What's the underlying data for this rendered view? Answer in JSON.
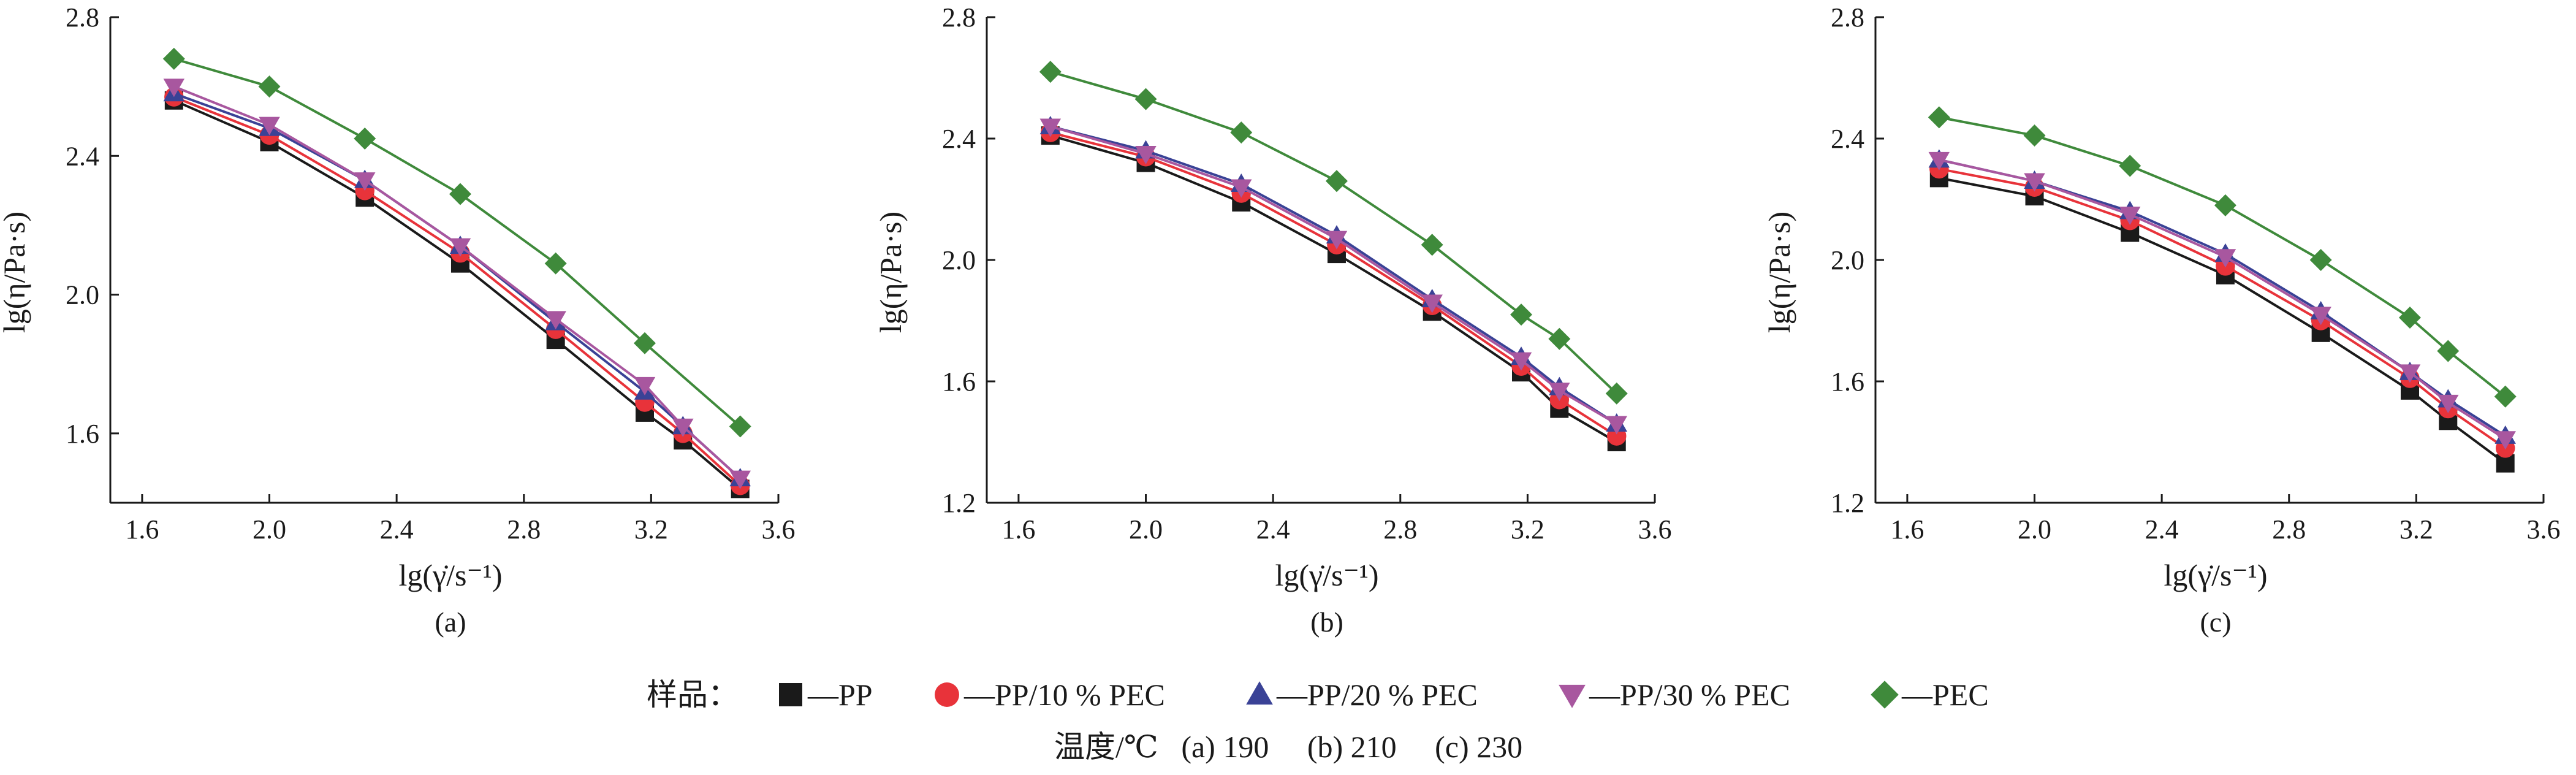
{
  "chart_data": [
    {
      "type": "line",
      "panel_label": "(a)",
      "xlabel": "lg(γ̇/s⁻¹)",
      "ylabel": "lg(η/Pa·s)",
      "xlim": [
        1.5,
        3.6
      ],
      "ylim": [
        1.4,
        2.8
      ],
      "xticks": [
        "1.6",
        "2.0",
        "2.4",
        "2.8",
        "3.2",
        "3.6"
      ],
      "yticks": [
        "1.6",
        "2.0",
        "2.4",
        "2.8"
      ],
      "grid": false,
      "x": [
        1.7,
        2.0,
        2.3,
        2.6,
        2.9,
        3.18,
        3.3,
        3.48
      ],
      "series": [
        {
          "name": "PP",
          "values": [
            2.56,
            2.44,
            2.28,
            2.09,
            1.87,
            1.66,
            1.58,
            1.44
          ]
        },
        {
          "name": "PP/10 % PEC",
          "values": [
            2.57,
            2.46,
            2.3,
            2.12,
            1.9,
            1.69,
            1.6,
            1.45
          ]
        },
        {
          "name": "PP/20 % PEC",
          "values": [
            2.58,
            2.48,
            2.33,
            2.14,
            1.92,
            1.72,
            1.62,
            1.47
          ]
        },
        {
          "name": "PP/30 % PEC",
          "values": [
            2.6,
            2.49,
            2.33,
            2.14,
            1.93,
            1.74,
            1.62,
            1.47
          ]
        },
        {
          "name": "PEC",
          "values": [
            2.68,
            2.6,
            2.45,
            2.29,
            2.09,
            1.86,
            null,
            1.62
          ]
        }
      ]
    },
    {
      "type": "line",
      "panel_label": "(b)",
      "xlabel": "lg(γ̇/s⁻¹)",
      "ylabel": "lg(η/Pa·s)",
      "xlim": [
        1.5,
        3.6
      ],
      "ylim": [
        1.2,
        2.8
      ],
      "xticks": [
        "1.6",
        "2.0",
        "2.4",
        "2.8",
        "3.2",
        "3.6"
      ],
      "yticks": [
        "1.2",
        "1.6",
        "2.0",
        "2.4",
        "2.8"
      ],
      "grid": false,
      "x": [
        1.7,
        2.0,
        2.3,
        2.6,
        2.9,
        3.18,
        3.3,
        3.48
      ],
      "series": [
        {
          "name": "PP",
          "values": [
            2.41,
            2.32,
            2.19,
            2.02,
            1.83,
            1.63,
            1.51,
            1.4
          ]
        },
        {
          "name": "PP/10 % PEC",
          "values": [
            2.42,
            2.34,
            2.22,
            2.05,
            1.85,
            1.65,
            1.54,
            1.42
          ]
        },
        {
          "name": "PP/20 % PEC",
          "values": [
            2.44,
            2.36,
            2.25,
            2.08,
            1.87,
            1.68,
            1.58,
            1.46
          ]
        },
        {
          "name": "PP/30 % PEC",
          "values": [
            2.44,
            2.35,
            2.24,
            2.07,
            1.86,
            1.67,
            1.57,
            1.46
          ]
        },
        {
          "name": "PEC",
          "values": [
            2.62,
            2.53,
            2.42,
            2.26,
            2.05,
            1.82,
            1.74,
            1.56
          ]
        }
      ]
    },
    {
      "type": "line",
      "panel_label": "(c)",
      "xlabel": "lg(γ̇/s⁻¹)",
      "ylabel": "lg(η/Pa·s)",
      "xlim": [
        1.5,
        3.6
      ],
      "ylim": [
        1.2,
        2.8
      ],
      "xticks": [
        "1.6",
        "2.0",
        "2.4",
        "2.8",
        "3.2",
        "3.6"
      ],
      "yticks": [
        "1.2",
        "1.6",
        "2.0",
        "2.4",
        "2.8"
      ],
      "grid": false,
      "x": [
        1.7,
        2.0,
        2.3,
        2.6,
        2.9,
        3.18,
        3.3,
        3.48
      ],
      "series": [
        {
          "name": "PP",
          "values": [
            2.27,
            2.21,
            2.09,
            1.95,
            1.76,
            1.57,
            1.47,
            1.33
          ]
        },
        {
          "name": "PP/10 % PEC",
          "values": [
            2.3,
            2.24,
            2.13,
            1.98,
            1.8,
            1.61,
            1.51,
            1.38
          ]
        },
        {
          "name": "PP/20 % PEC",
          "values": [
            2.33,
            2.26,
            2.16,
            2.02,
            1.83,
            1.63,
            1.54,
            1.42
          ]
        },
        {
          "name": "PP/30 % PEC",
          "values": [
            2.33,
            2.26,
            2.15,
            2.01,
            1.82,
            1.63,
            1.53,
            1.41
          ]
        },
        {
          "name": "PEC",
          "values": [
            2.47,
            2.41,
            2.31,
            2.18,
            2.0,
            1.81,
            1.7,
            1.55
          ]
        }
      ]
    }
  ],
  "legend": {
    "prefix": "样品：",
    "entries": [
      "—PP",
      "—PP/10 % PEC",
      "—PP/20 % PEC",
      "—PP/30 % PEC",
      "—PEC"
    ],
    "placement": "bottom"
  },
  "temperature_line": "温度/℃   (a) 190     (b) 210     (c) 230",
  "series_style": [
    {
      "marker": "square",
      "color": "#1a1a1a"
    },
    {
      "marker": "circle",
      "color": "#e8333a"
    },
    {
      "marker": "triangle-up",
      "color": "#3a4296"
    },
    {
      "marker": "triangle-down",
      "color": "#a8579f"
    },
    {
      "marker": "diamond",
      "color": "#3f8a3b"
    }
  ]
}
